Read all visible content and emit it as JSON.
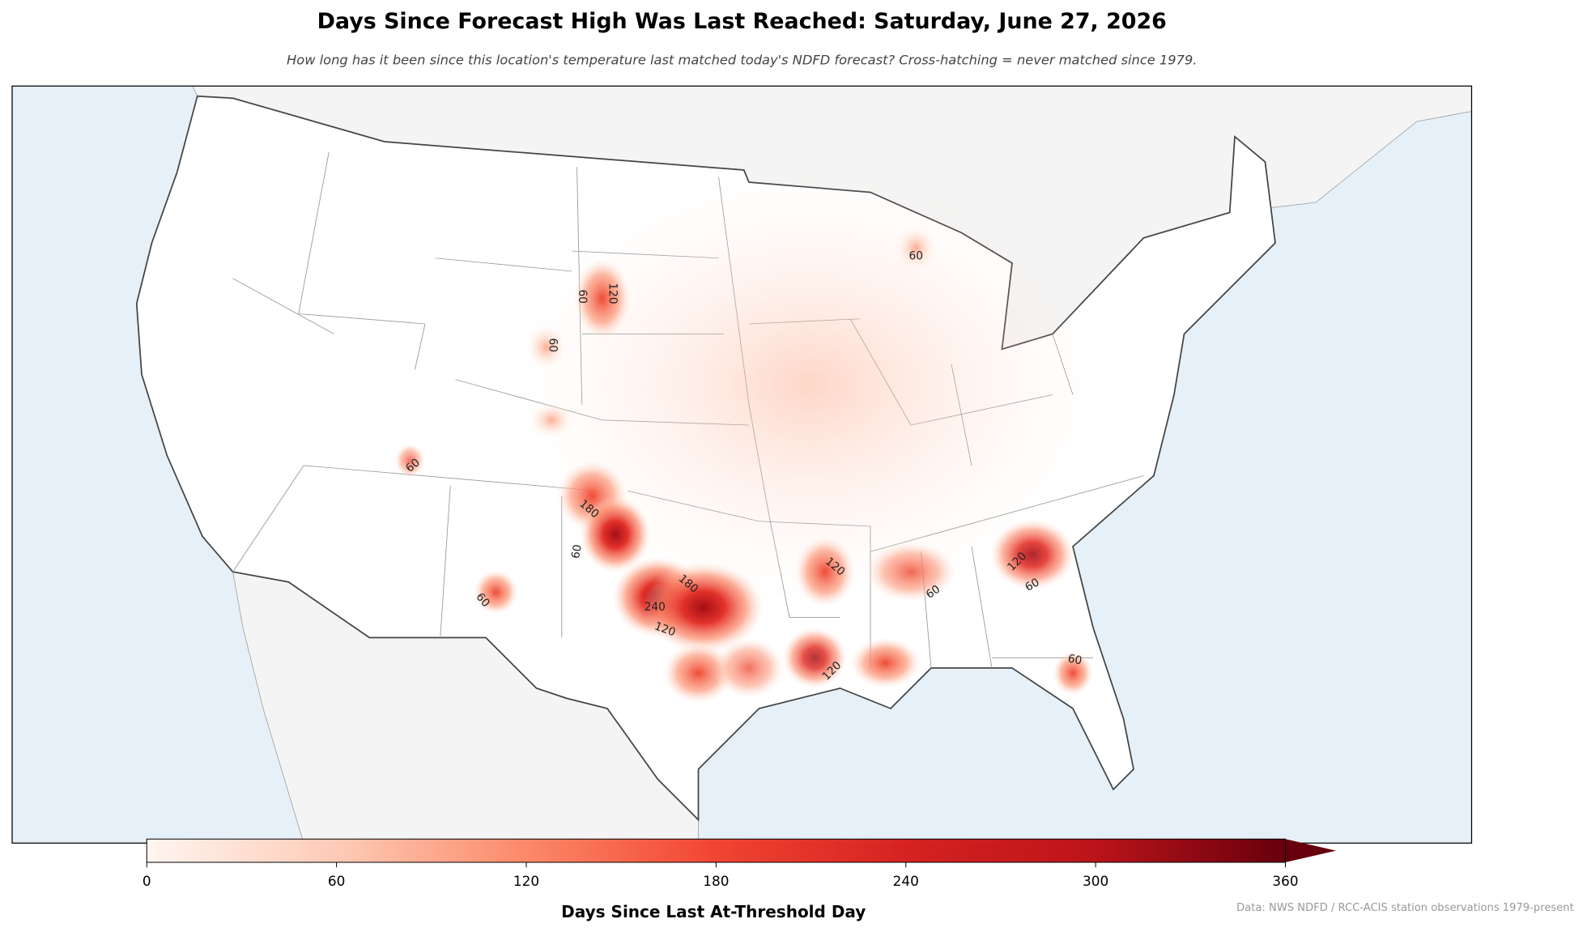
{
  "header": {
    "title": "Days Since Forecast High Was Last Reached: Saturday, June 27, 2026",
    "subtitle": "How long has it been since this location's temperature last matched today's NDFD forecast? Cross-hatching = never matched since 1979."
  },
  "map": {
    "contour_levels": [
      60,
      120,
      180,
      240
    ]
  },
  "colorbar": {
    "label": "Days Since Last At-Threshold Day",
    "lim": [
      0,
      360
    ],
    "ticks": [
      0,
      60,
      120,
      180,
      240,
      300,
      360
    ],
    "extend": "max"
  },
  "source": "Data: NWS NDFD / RCC-ACIS station observations 1979-present"
}
